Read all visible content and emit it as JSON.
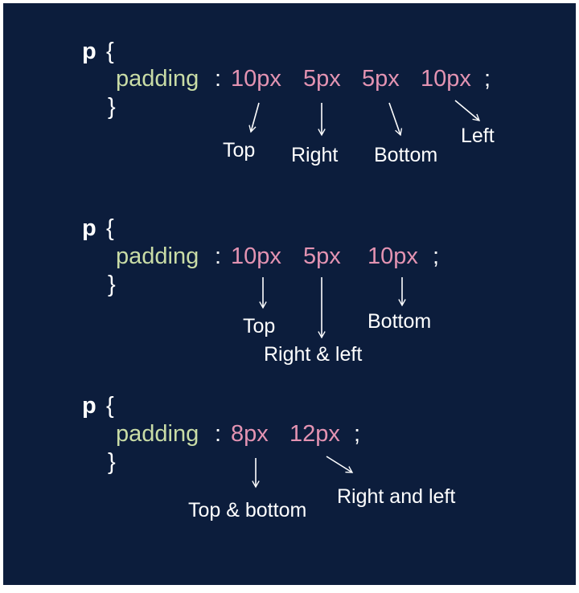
{
  "colors": {
    "background": "#0c1d3c",
    "property": "#c9dca6",
    "value": "#e393b2",
    "text": "#ffffff"
  },
  "examples": [
    {
      "selector": "p",
      "open_brace": "{",
      "property": "padding",
      "colon": ":",
      "values": [
        "10px",
        "5px",
        "5px",
        "10px"
      ],
      "semicolon": ";",
      "close_brace": "}",
      "labels": [
        "Top",
        "Right",
        "Bottom",
        "Left"
      ]
    },
    {
      "selector": "p",
      "open_brace": "{",
      "property": "padding",
      "colon": ":",
      "values": [
        "10px",
        "5px",
        "10px"
      ],
      "semicolon": ";",
      "close_brace": "}",
      "labels": [
        "Top",
        "Right & left",
        "Bottom"
      ]
    },
    {
      "selector": "p",
      "open_brace": "{",
      "property": "padding",
      "colon": ":",
      "values": [
        "8px",
        "12px"
      ],
      "semicolon": ";",
      "close_brace": "}",
      "labels": [
        "Top & bottom",
        "Right and left"
      ]
    }
  ]
}
